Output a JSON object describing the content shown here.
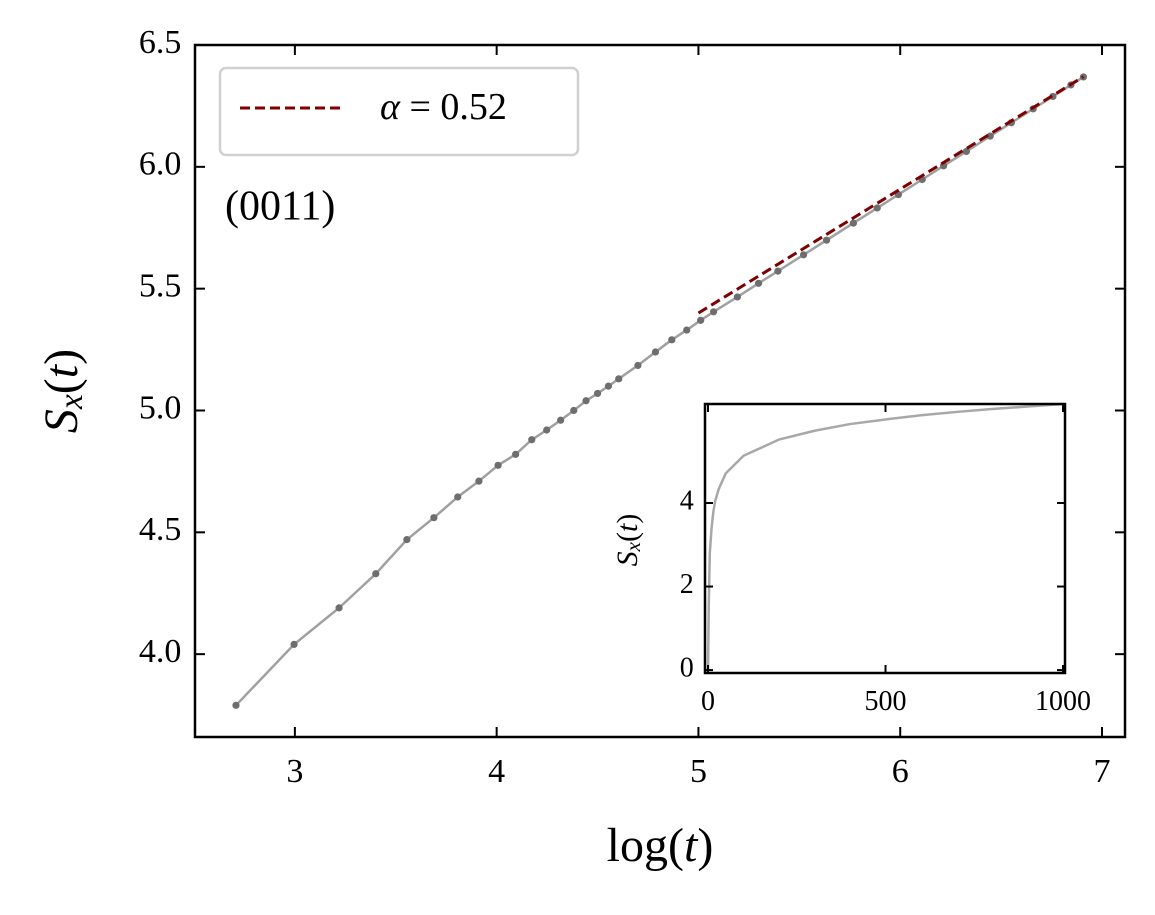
{
  "chart_data": [
    {
      "type": "line",
      "xlabel": [
        "log(",
        "t",
        ")"
      ],
      "ylabel": [
        "S",
        "x",
        "(",
        "t",
        ")"
      ],
      "annotation": "(0011)",
      "xlim": [
        2.505,
        7.114
      ],
      "ylim": [
        3.66,
        6.5
      ],
      "xticks": [
        3,
        4,
        5,
        6,
        7
      ],
      "yticks": [
        {
          "value": 4,
          "label": "4.0"
        },
        4.5,
        {
          "value": 5,
          "label": "5.0"
        },
        5.5,
        {
          "value": 6,
          "label": "6.0"
        },
        6.5
      ],
      "legend": "upper left",
      "series": [
        {
          "color": "#a0a0a0",
          "marker_color": "#6e6e6e",
          "linestyle": "solid",
          "x": [
            2.708,
            2.996,
            3.219,
            3.401,
            3.555,
            3.689,
            3.807,
            3.912,
            4.007,
            4.094,
            4.174,
            4.248,
            4.317,
            4.382,
            4.443,
            4.5,
            4.554,
            4.605,
            4.7,
            4.787,
            4.868,
            4.942,
            5.011,
            5.075,
            5.193,
            5.298,
            5.394,
            5.521,
            5.635,
            5.768,
            5.886,
            5.991,
            6.109,
            6.215,
            6.328,
            6.446,
            6.551,
            6.659,
            6.757,
            6.846,
            6.908
          ],
          "values": [
            3.79,
            4.04,
            4.19,
            4.33,
            4.47,
            4.56,
            4.645,
            4.71,
            4.775,
            4.82,
            4.88,
            4.92,
            4.96,
            5.0,
            5.04,
            5.07,
            5.1,
            5.13,
            5.185,
            5.24,
            5.29,
            5.33,
            5.37,
            5.405,
            5.466,
            5.522,
            5.572,
            5.639,
            5.699,
            5.769,
            5.831,
            5.886,
            5.948,
            6.004,
            6.063,
            6.126,
            6.181,
            6.238,
            6.289,
            6.336,
            6.369
          ]
        },
        {
          "name": [
            "α",
            " = 0.52"
          ],
          "color": "#7f0000",
          "linestyle": "dashed",
          "x": [
            5.0,
            6.908
          ],
          "values": [
            5.4,
            6.37
          ]
        }
      ]
    },
    {
      "type": "line",
      "ylabel": [
        "S",
        "x",
        "(",
        "t",
        ")"
      ],
      "xlim": [
        -8.5,
        1005.6
      ],
      "ylim": [
        -0.07,
        6.37
      ],
      "xticks": [
        0,
        500,
        1000
      ],
      "yticks": [
        0,
        2,
        4
      ],
      "series": [
        {
          "color": "#a8a8a8",
          "linestyle": "solid",
          "x": [
            0,
            2,
            5,
            10,
            15,
            20,
            30,
            50,
            100,
            200,
            300,
            400,
            500,
            600,
            700,
            800,
            900,
            1000
          ],
          "values": [
            0,
            1.5,
            2.8,
            3.4,
            3.79,
            4.04,
            4.33,
            4.71,
            5.13,
            5.52,
            5.73,
            5.89,
            6.0,
            6.1,
            6.18,
            6.25,
            6.31,
            6.37
          ]
        }
      ]
    }
  ]
}
